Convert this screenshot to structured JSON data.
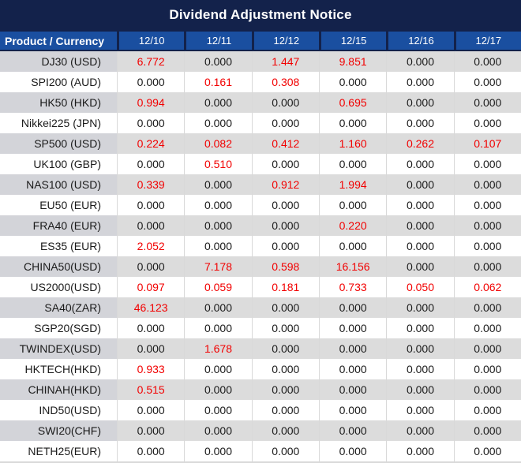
{
  "title": "Dividend Adjustment Notice",
  "table": {
    "product_header": "Product / Currency",
    "date_headers": [
      "12/10",
      "12/11",
      "12/12",
      "12/15",
      "12/16",
      "12/17"
    ],
    "rows": [
      {
        "product": "DJ30 (USD)",
        "values": [
          "6.772",
          "0.000",
          "1.447",
          "9.851",
          "0.000",
          "0.000"
        ]
      },
      {
        "product": "SPI200 (AUD)",
        "values": [
          "0.000",
          "0.161",
          "0.308",
          "0.000",
          "0.000",
          "0.000"
        ]
      },
      {
        "product": "HK50 (HKD)",
        "values": [
          "0.994",
          "0.000",
          "0.000",
          "0.695",
          "0.000",
          "0.000"
        ]
      },
      {
        "product": "Nikkei225 (JPN)",
        "values": [
          "0.000",
          "0.000",
          "0.000",
          "0.000",
          "0.000",
          "0.000"
        ]
      },
      {
        "product": "SP500 (USD)",
        "values": [
          "0.224",
          "0.082",
          "0.412",
          "1.160",
          "0.262",
          "0.107"
        ]
      },
      {
        "product": "UK100 (GBP)",
        "values": [
          "0.000",
          "0.510",
          "0.000",
          "0.000",
          "0.000",
          "0.000"
        ]
      },
      {
        "product": "NAS100 (USD)",
        "values": [
          "0.339",
          "0.000",
          "0.912",
          "1.994",
          "0.000",
          "0.000"
        ]
      },
      {
        "product": "EU50 (EUR)",
        "values": [
          "0.000",
          "0.000",
          "0.000",
          "0.000",
          "0.000",
          "0.000"
        ]
      },
      {
        "product": "FRA40 (EUR)",
        "values": [
          "0.000",
          "0.000",
          "0.000",
          "0.220",
          "0.000",
          "0.000"
        ]
      },
      {
        "product": "ES35 (EUR)",
        "values": [
          "2.052",
          "0.000",
          "0.000",
          "0.000",
          "0.000",
          "0.000"
        ]
      },
      {
        "product": "CHINA50(USD)",
        "values": [
          "0.000",
          "7.178",
          "0.598",
          "16.156",
          "0.000",
          "0.000"
        ]
      },
      {
        "product": "US2000(USD)",
        "values": [
          "0.097",
          "0.059",
          "0.181",
          "0.733",
          "0.050",
          "0.062"
        ]
      },
      {
        "product": "SA40(ZAR)",
        "values": [
          "46.123",
          "0.000",
          "0.000",
          "0.000",
          "0.000",
          "0.000"
        ]
      },
      {
        "product": "SGP20(SGD)",
        "values": [
          "0.000",
          "0.000",
          "0.000",
          "0.000",
          "0.000",
          "0.000"
        ]
      },
      {
        "product": "TWINDEX(USD)",
        "values": [
          "0.000",
          "1.678",
          "0.000",
          "0.000",
          "0.000",
          "0.000"
        ]
      },
      {
        "product": "HKTECH(HKD)",
        "values": [
          "0.933",
          "0.000",
          "0.000",
          "0.000",
          "0.000",
          "0.000"
        ]
      },
      {
        "product": "CHINAH(HKD)",
        "values": [
          "0.515",
          "0.000",
          "0.000",
          "0.000",
          "0.000",
          "0.000"
        ]
      },
      {
        "product": "IND50(USD)",
        "values": [
          "0.000",
          "0.000",
          "0.000",
          "0.000",
          "0.000",
          "0.000"
        ]
      },
      {
        "product": "SWI20(CHF)",
        "values": [
          "0.000",
          "0.000",
          "0.000",
          "0.000",
          "0.000",
          "0.000"
        ]
      },
      {
        "product": "NETH25(EUR)",
        "values": [
          "0.000",
          "0.000",
          "0.000",
          "0.000",
          "0.000",
          "0.000"
        ]
      }
    ]
  },
  "colors": {
    "title_bar_bg": "#13224b",
    "header_cell_bg": "#1a4fa0",
    "alt_row_bg": "#dcdcdc",
    "alt_product_cell_bg": "#d3d4d9",
    "grid_line": "#d9d9d9",
    "nonzero_value_text": "#f20000",
    "zero_value_text": "#1a1a1a",
    "header_text": "#ffffff"
  }
}
